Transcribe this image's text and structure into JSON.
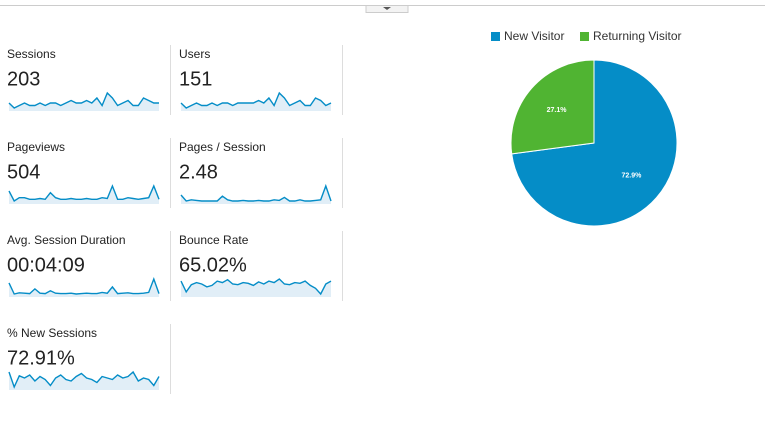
{
  "metrics": [
    {
      "label": "Sessions",
      "value": "203",
      "sparkline": [
        6,
        4,
        5,
        6,
        5,
        5,
        6,
        5,
        6,
        6,
        5,
        6,
        7,
        6,
        6,
        7,
        6,
        8,
        5,
        10,
        8,
        5,
        6,
        7,
        5,
        5,
        8,
        7,
        6,
        6
      ]
    },
    {
      "label": "Users",
      "value": "151",
      "sparkline": [
        5,
        3,
        4,
        5,
        4,
        4,
        5,
        4,
        5,
        5,
        4,
        5,
        5,
        5,
        5,
        6,
        5,
        7,
        4,
        9,
        7,
        4,
        5,
        6,
        4,
        4,
        7,
        6,
        4,
        5
      ]
    },
    {
      "label": "Pageviews",
      "value": "504",
      "sparkline": [
        20,
        8,
        12,
        12,
        10,
        10,
        11,
        10,
        18,
        12,
        10,
        10,
        11,
        10,
        10,
        11,
        10,
        10,
        12,
        11,
        26,
        10,
        10,
        12,
        11,
        10,
        11,
        12,
        26,
        10
      ]
    },
    {
      "label": "Pages / Session",
      "value": "2.48",
      "sparkline": [
        3,
        2,
        2.2,
        2.1,
        2,
        2,
        2,
        2,
        2.8,
        2.2,
        2,
        2,
        2.1,
        2,
        2,
        2.1,
        2,
        2,
        2.2,
        2.1,
        2.6,
        2,
        2,
        2.2,
        2,
        2,
        2.1,
        2.2,
        4.5,
        2
      ]
    },
    {
      "label": "Avg. Session Duration",
      "value": "00:04:09",
      "sparkline": [
        400,
        120,
        150,
        140,
        130,
        250,
        140,
        130,
        200,
        140,
        130,
        130,
        140,
        120,
        130,
        140,
        130,
        130,
        160,
        140,
        300,
        130,
        140,
        150,
        130,
        130,
        140,
        160,
        500,
        130
      ]
    },
    {
      "label": "Bounce Rate",
      "value": "65.02%",
      "sparkline": [
        70,
        55,
        65,
        68,
        66,
        62,
        64,
        70,
        68,
        72,
        66,
        65,
        68,
        67,
        64,
        69,
        66,
        70,
        68,
        73,
        66,
        65,
        68,
        67,
        70,
        64,
        60,
        52,
        66,
        70
      ]
    },
    {
      "label": "% New Sessions",
      "value": "72.91%",
      "sparkline": [
        80,
        60,
        75,
        72,
        76,
        68,
        74,
        70,
        62,
        72,
        76,
        70,
        68,
        74,
        78,
        72,
        70,
        66,
        74,
        72,
        70,
        76,
        72,
        74,
        80,
        68,
        72,
        70,
        62,
        74
      ]
    }
  ],
  "chart_data": {
    "type": "pie",
    "categories": [
      "New Visitor",
      "Returning Visitor"
    ],
    "values": [
      72.9,
      27.1
    ],
    "value_labels": [
      "72.9%",
      "27.1%"
    ],
    "colors": [
      "#058dc7",
      "#50b432"
    ]
  }
}
